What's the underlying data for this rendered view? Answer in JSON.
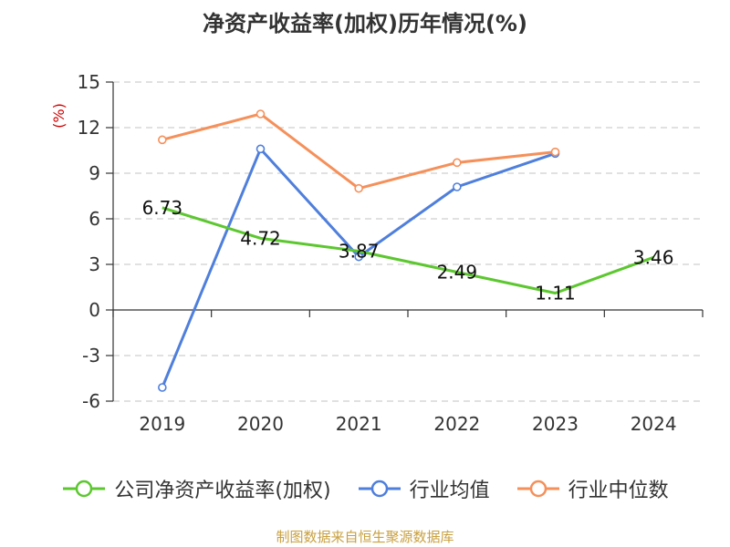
{
  "chart_data": {
    "type": "line",
    "title": "净资产收益率(加权)历年情况(%)",
    "ylabel": "(%)",
    "xlabel": "",
    "categories": [
      "2019",
      "2020",
      "2021",
      "2022",
      "2023",
      "2024"
    ],
    "ylim": [
      -6,
      15
    ],
    "yticks": [
      -6,
      -3,
      0,
      3,
      6,
      9,
      12,
      15
    ],
    "grid": "horizontal-dashed",
    "legend_position": "bottom",
    "series": [
      {
        "name": "公司净资产收益率(加权)",
        "color": "#5cc72f",
        "values": [
          6.73,
          4.72,
          3.87,
          2.49,
          1.11,
          3.46
        ],
        "data_labels": [
          "6.73",
          "4.72",
          "3.87",
          "2.49",
          "1.11",
          "3.46"
        ]
      },
      {
        "name": "行业均值",
        "color": "#4f7fdc",
        "values": [
          -5.1,
          10.6,
          3.5,
          8.1,
          10.3,
          null
        ]
      },
      {
        "name": "行业中位数",
        "color": "#f5905a",
        "values": [
          11.2,
          12.9,
          8.0,
          9.7,
          10.4,
          null
        ]
      }
    ]
  },
  "source_note": "制图数据来自恒生聚源数据库"
}
